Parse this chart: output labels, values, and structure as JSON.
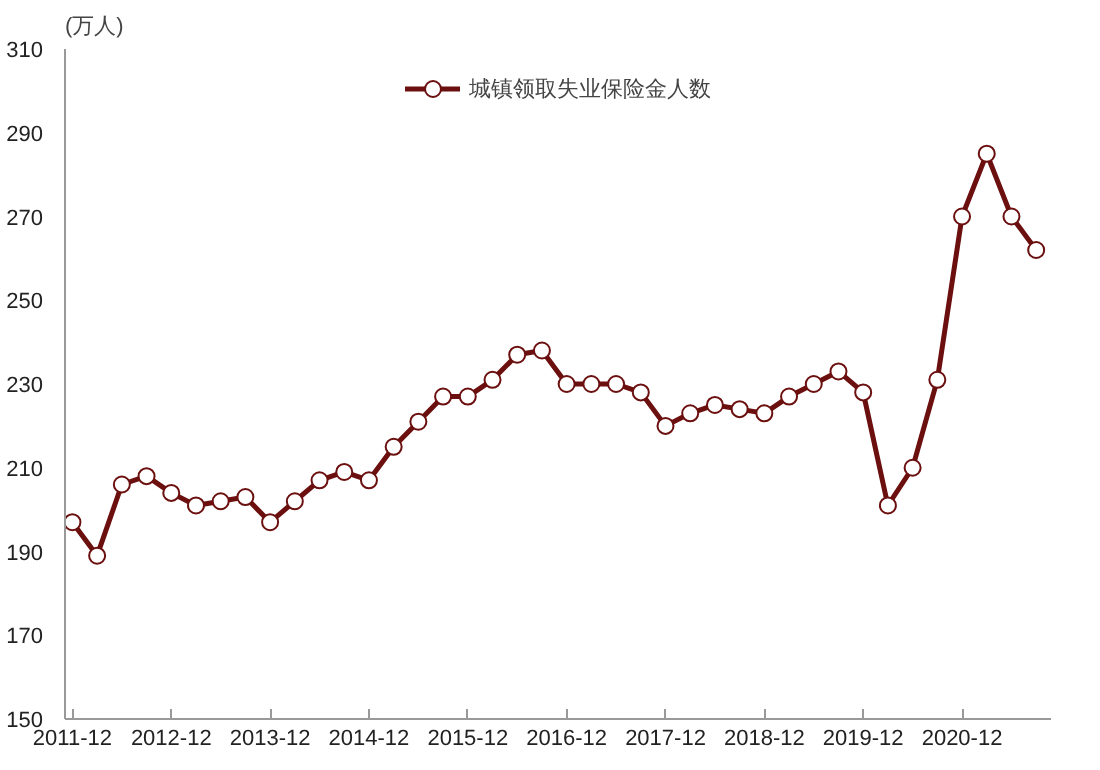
{
  "chart_data": {
    "type": "line",
    "ylabel": "(万人)",
    "categories": [
      "2011-12",
      null,
      null,
      null,
      "2012-12",
      null,
      null,
      null,
      "2013-12",
      null,
      null,
      null,
      "2014-12",
      null,
      null,
      null,
      "2015-12",
      null,
      null,
      null,
      "2016-12",
      null,
      null,
      null,
      "2017-12",
      null,
      null,
      null,
      "2018-12",
      null,
      null,
      null,
      "2019-12",
      null,
      null,
      null,
      "2020-12",
      null,
      null,
      null
    ],
    "series": [
      {
        "name": "城镇领取失业保险金人数",
        "color": "#6b0f0f",
        "values": [
          197,
          189,
          206,
          208,
          204,
          201,
          202,
          203,
          197,
          202,
          207,
          209,
          207,
          215,
          221,
          227,
          227,
          231,
          237,
          238,
          230,
          230,
          230,
          228,
          220,
          223,
          225,
          224,
          223,
          227,
          230,
          233,
          228,
          201,
          210,
          231,
          270,
          285,
          270,
          262
        ]
      }
    ],
    "ylim": [
      150,
      310
    ],
    "yticks": [
      150,
      170,
      190,
      210,
      230,
      250,
      270,
      290,
      310
    ],
    "grid": false,
    "legend": "top",
    "marker": "circle",
    "line_style": "solid"
  }
}
